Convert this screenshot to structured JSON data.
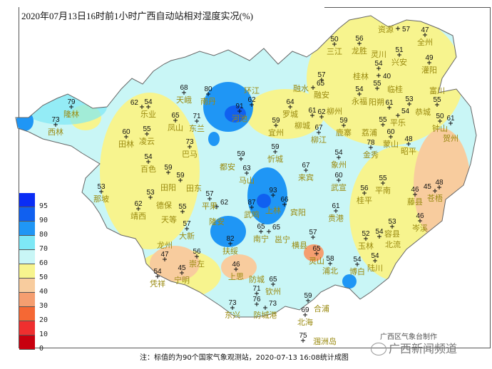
{
  "title": "2020年07月13日16时前1小时广西自动站相对湿度实况(%)",
  "legend": {
    "colors": [
      "#0a2df5",
      "#1060f0",
      "#1f96f5",
      "#7ee8f6",
      "#c9f6f6",
      "#f7f48e",
      "#f8cc9e",
      "#f59e70",
      "#f56834",
      "#ef2f2f",
      "#c8000f"
    ],
    "labels": [
      "95",
      "90",
      "80",
      "70",
      "60",
      "50",
      "40",
      "30",
      "20",
      "10",
      "0"
    ]
  },
  "stations": [
    {
      "name": "隆林",
      "value": "79"
    },
    {
      "name": "西林",
      "value": "73"
    },
    {
      "name": "田林",
      "value": "60"
    },
    {
      "name": "乐业",
      "value": "54"
    },
    {
      "name": "",
      "value": "62"
    },
    {
      "name": "凌云",
      "value": "55"
    },
    {
      "name": "凤山",
      "value": "65"
    },
    {
      "name": "天峨",
      "value": "68"
    },
    {
      "name": "南丹",
      "value": "80"
    },
    {
      "name": "河池",
      "value": "91"
    },
    {
      "name": "环江",
      "value": "62"
    },
    {
      "name": "东兰",
      "value": "71"
    },
    {
      "name": "巴马",
      "value": "73"
    },
    {
      "name": "罗城",
      "value": "64"
    },
    {
      "name": "宜州",
      "value": "59"
    },
    {
      "name": "忻城",
      "value": "59"
    },
    {
      "name": "都安",
      "value": "59"
    },
    {
      "name": "融安",
      "value": "57"
    },
    {
      "name": "融水",
      "value": "65"
    },
    {
      "name": "柳城",
      "value": "61"
    },
    {
      "name": "柳州",
      "value": "62"
    },
    {
      "name": "柳江",
      "value": "67"
    },
    {
      "name": "三江",
      "value": "50"
    },
    {
      "name": "龙胜",
      "value": "56"
    },
    {
      "name": "资源",
      "value": "57"
    },
    {
      "name": "全州",
      "value": "47"
    },
    {
      "name": "兴安",
      "value": "51"
    },
    {
      "name": "灌阳",
      "value": "49"
    },
    {
      "name": "灵川",
      "value": "54"
    },
    {
      "name": "桂林",
      "value": "40"
    },
    {
      "name": "临桂",
      "value": "55"
    },
    {
      "name": "永福",
      "value": "54"
    },
    {
      "name": "阳朔",
      "value": "61"
    },
    {
      "name": "恭城",
      "value": "53"
    },
    {
      "name": "平乐",
      "value": "54"
    },
    {
      "name": "荔浦",
      "value": "55"
    },
    {
      "name": "蒙山",
      "value": "60"
    },
    {
      "name": "昭平",
      "value": "48"
    },
    {
      "name": "富川",
      "value": "55"
    },
    {
      "name": "钟山",
      "value": "50"
    },
    {
      "name": "贺州",
      "value": "61"
    },
    {
      "name": "金秀",
      "value": "78"
    },
    {
      "name": "鹿寨",
      "value": "59"
    },
    {
      "name": "象州",
      "value": "54"
    },
    {
      "name": "百色",
      "value": "54"
    },
    {
      "name": "田阳",
      "value": "59"
    },
    {
      "name": "田东",
      "value": "59"
    },
    {
      "name": "那坡",
      "value": "53"
    },
    {
      "name": "德保",
      "value": "53"
    },
    {
      "name": "靖西",
      "value": "62"
    },
    {
      "name": "平果",
      "value": "57"
    },
    {
      "name": "隆安",
      "value": "62"
    },
    {
      "name": "天等",
      "value": "55"
    },
    {
      "name": "大新",
      "value": "57"
    },
    {
      "name": "崇左",
      "value": "56"
    },
    {
      "name": "龙州",
      "value": "47"
    },
    {
      "name": "宁明",
      "value": "45"
    },
    {
      "name": "凭祥",
      "value": "54"
    },
    {
      "name": "扶绥",
      "value": "82"
    },
    {
      "name": "南宁",
      "value": "65"
    },
    {
      "name": "邕宁",
      "value": "65"
    },
    {
      "name": "马山",
      "value": "63"
    },
    {
      "name": "上林",
      "value": "93"
    },
    {
      "name": "武鸣",
      "value": "87"
    },
    {
      "name": "宾阳",
      "value": "66"
    },
    {
      "name": "来宾",
      "value": "67"
    },
    {
      "name": "武宣",
      "value": "60"
    },
    {
      "name": "贵港",
      "value": "61"
    },
    {
      "name": "桂平",
      "value": "56"
    },
    {
      "name": "平南",
      "value": "55"
    },
    {
      "name": "横县",
      "value": "57"
    },
    {
      "name": "灵山",
      "value": "65"
    },
    {
      "name": "浦北",
      "value": "58"
    },
    {
      "name": "博白",
      "value": "54"
    },
    {
      "name": "玉林",
      "value": "52"
    },
    {
      "name": "北流",
      "value": "54"
    },
    {
      "name": "陆川",
      "value": "54"
    },
    {
      "name": "容县",
      "value": "53"
    },
    {
      "name": "藤县",
      "value": "46"
    },
    {
      "name": "",
      "value": "48"
    },
    {
      "name": "苍梧",
      "value": "45"
    },
    {
      "name": "岑溪",
      "value": "46"
    },
    {
      "name": "上思",
      "value": "46"
    },
    {
      "name": "防城",
      "value": "71"
    },
    {
      "name": "",
      "value": "76"
    },
    {
      "name": "防城港",
      "value": "73"
    },
    {
      "name": "东兴",
      "value": "73"
    },
    {
      "name": "钦州",
      "value": "65"
    },
    {
      "name": "合浦",
      "value": "59"
    },
    {
      "name": "北海",
      "value": "69"
    },
    {
      "name": "涠洲岛",
      "value": "75"
    }
  ],
  "footer": "注：标值的为90个国家气象观测站，2020-07-13 16:08统计成图",
  "credit": "广西区气象台制作",
  "watermark": "广西新闻频道"
}
